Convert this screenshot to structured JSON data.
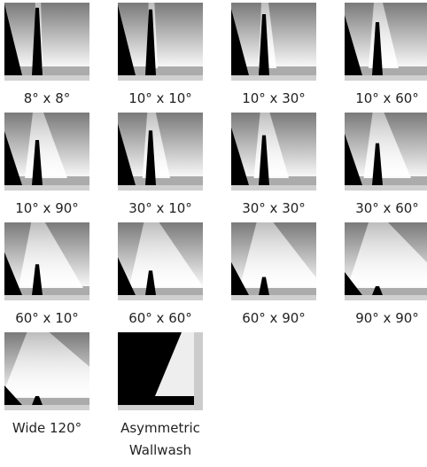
{
  "items": [
    {
      "label": "8° x 8°"
    },
    {
      "label": "10° x 10°"
    },
    {
      "label": "10° x 30°"
    },
    {
      "label": "10° x 60°"
    },
    {
      "label": "10° x 90°"
    },
    {
      "label": "30° x 10°"
    },
    {
      "label": "30° x 30°"
    },
    {
      "label": "30° x 60°"
    },
    {
      "label": "60° x 10°"
    },
    {
      "label": "60° x 60°"
    },
    {
      "label": "60° x 90°"
    },
    {
      "label": "90° x 90°"
    },
    {
      "label": "Wide 120°"
    },
    {
      "label": "Asymmetric Wallwash"
    }
  ]
}
